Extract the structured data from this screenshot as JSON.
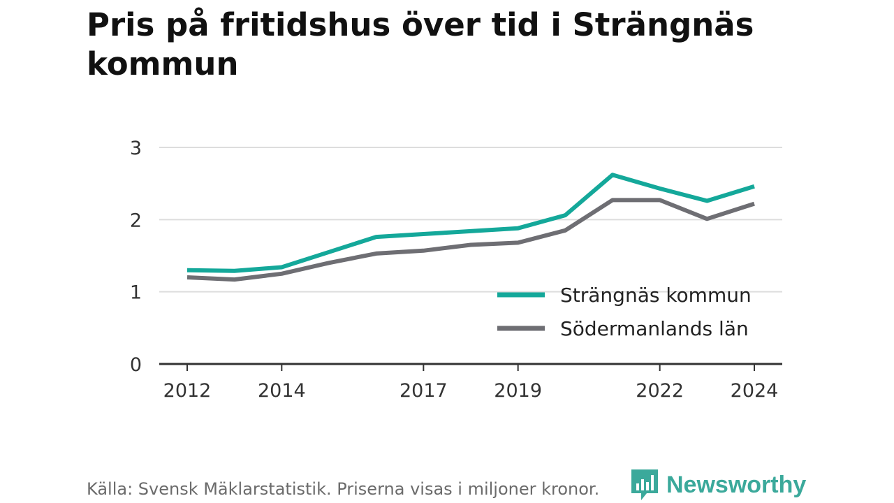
{
  "title": "Pris på fritidshus över tid i Strängnäs kommun",
  "source": "Källa: Svensk Mäklarstatistik. Priserna visas i miljoner kronor.",
  "brand": "Newsworthy",
  "colors": {
    "accent": "#14a89a",
    "secondary": "#6e6e73",
    "brand": "#3ba99b"
  },
  "chart_data": {
    "type": "line",
    "x": [
      2012,
      2013,
      2014,
      2015,
      2016,
      2017,
      2018,
      2019,
      2020,
      2021,
      2022,
      2023,
      2024
    ],
    "x_tick_labels": [
      "2012",
      "2014",
      "2017",
      "2019",
      "2022",
      "2024"
    ],
    "x_tick_values": [
      2012,
      2014,
      2017,
      2019,
      2022,
      2024
    ],
    "y_ticks": [
      0,
      1,
      2,
      3
    ],
    "y_tick_labels": [
      "0",
      "1",
      "2",
      "3"
    ],
    "ylim": [
      0,
      3
    ],
    "grid": true,
    "legend_position": "bottom-right",
    "series": [
      {
        "name": "Strängnäs kommun",
        "color": "#14a89a",
        "values": [
          1.3,
          1.29,
          1.34,
          1.55,
          1.76,
          1.8,
          1.84,
          1.88,
          2.06,
          2.62,
          2.43,
          2.26,
          2.46
        ]
      },
      {
        "name": "Södermanlands län",
        "color": "#6e6e73",
        "values": [
          1.2,
          1.17,
          1.25,
          1.4,
          1.53,
          1.57,
          1.65,
          1.68,
          1.85,
          2.27,
          2.27,
          2.01,
          2.22
        ]
      }
    ]
  }
}
